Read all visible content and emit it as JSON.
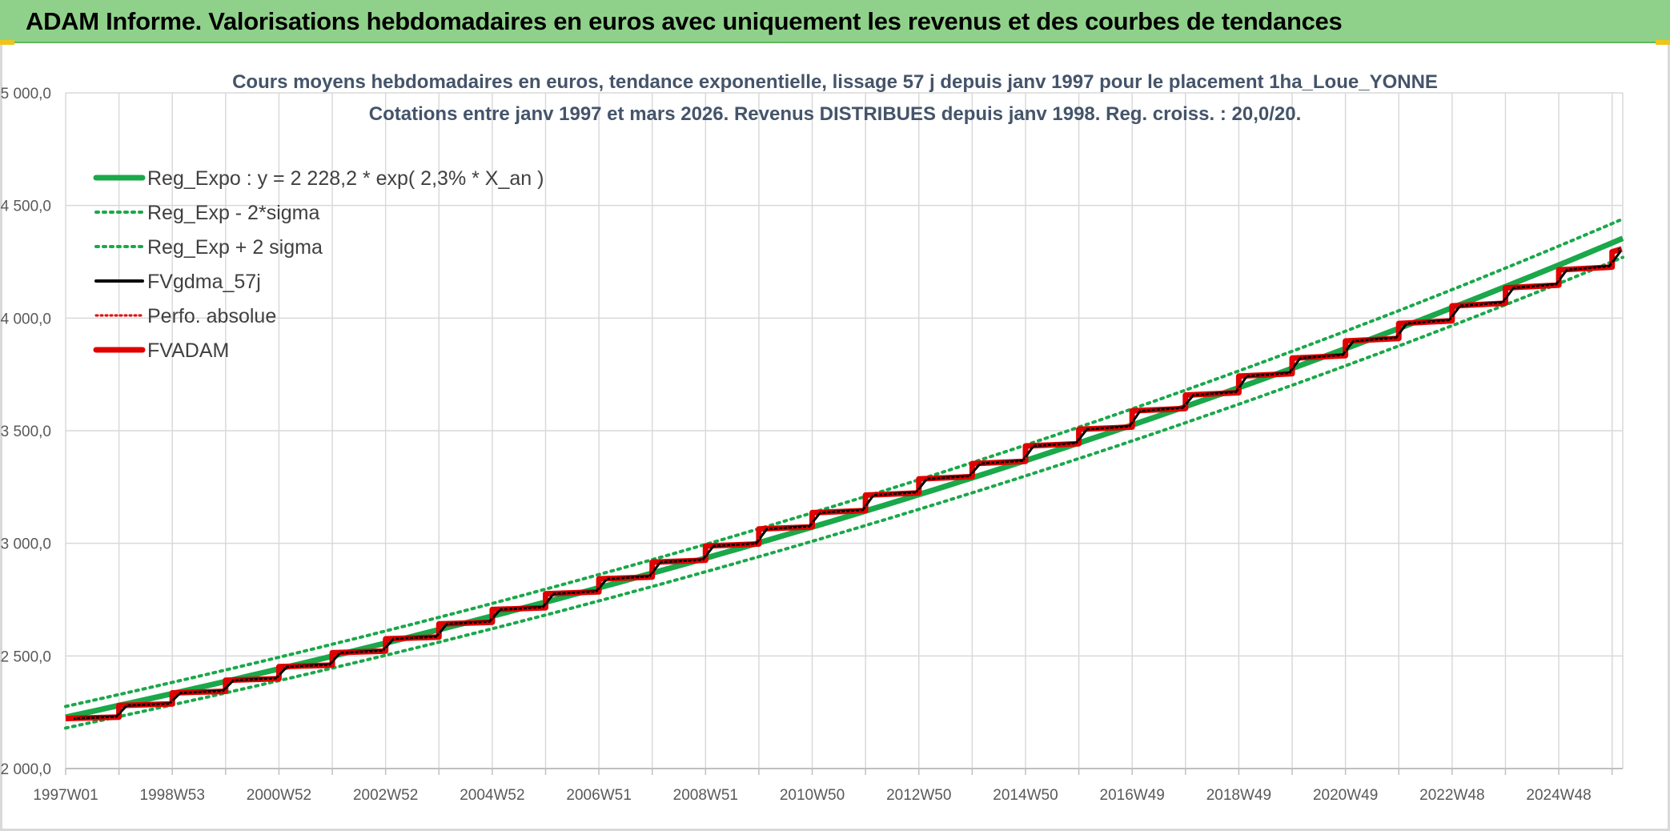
{
  "banner": {
    "title": "ADAM Informe. Valorisations hebdomadaires en euros avec uniquement les revenus et des courbes de tendances"
  },
  "chart_data": {
    "type": "line",
    "title": "Cours moyens hebdomadaires en euros, tendance exponentielle, lissage 57 j depuis janv 1997 pour le placement 1ha_Loue_YONNE",
    "subtitle": "Cotations entre janv 1997 et mars 2026. Revenus DISTRIBUES depuis janv 1998. Reg. croiss. : 20,0/20.",
    "ylim": [
      2000,
      5000
    ],
    "yticks": [
      "2 000,0",
      "2 500,0",
      "3 000,0",
      "3 500,0",
      "4 000,0",
      "4 500,0",
      "5 000,0"
    ],
    "xlim": [
      1997.0,
      2026.2
    ],
    "xtick_labels": [
      "1997W01",
      "1998W53",
      "2000W52",
      "2002W52",
      "2004W52",
      "2006W51",
      "2008W51",
      "2010W50",
      "2012W50",
      "2014W50",
      "2016W49",
      "2018W49",
      "2020W49",
      "2022W48",
      "2024W48"
    ],
    "grid": true,
    "legend_position": "top-left",
    "series": [
      {
        "name": "Reg_Expo : y = 2 228,2 * exp( 2,3% *  X_an )",
        "color": "#1aa84a",
        "style": "solid",
        "x": [
          1997.0,
          2026.2
        ],
        "values": [
          2228.2,
          4354
        ]
      },
      {
        "name": "Reg_Exp - 2*sigma",
        "color": "#1aa84a",
        "style": "dotted",
        "x": [
          1997.0,
          2026.2
        ],
        "values": [
          2180,
          4270
        ]
      },
      {
        "name": "Reg_Exp + 2 sigma",
        "color": "#1aa84a",
        "style": "dotted",
        "x": [
          1997.0,
          2026.2
        ],
        "values": [
          2276,
          4440
        ]
      },
      {
        "name": "FVgdma_57j",
        "color": "#000000",
        "style": "solid",
        "x": [
          1997.0,
          2026.2
        ],
        "values": [
          2225,
          4290
        ]
      },
      {
        "name": "Perfo. absolue",
        "color": "#e00000",
        "style": "dotted",
        "x": [
          1997.0,
          2026.2
        ],
        "values": [
          2225,
          4290
        ]
      },
      {
        "name": "FVADAM",
        "color": "#e00000",
        "style": "solid",
        "x": [
          1997.0,
          1998.0,
          1999.0,
          2000.0,
          2001.0,
          2002.0,
          2003.0,
          2004.0,
          2005.0,
          2006.0,
          2007.0,
          2008.0,
          2009.0,
          2010.0,
          2011.0,
          2012.0,
          2013.0,
          2014.0,
          2015.0,
          2016.0,
          2017.0,
          2018.0,
          2019.0,
          2020.0,
          2021.0,
          2022.0,
          2023.0,
          2024.0,
          2025.0,
          2026.0
        ],
        "values": [
          2222,
          2280,
          2336,
          2392,
          2452,
          2514,
          2576,
          2642,
          2706,
          2776,
          2842,
          2916,
          2988,
          3064,
          3136,
          3214,
          3286,
          3354,
          3432,
          3506,
          3588,
          3658,
          3742,
          3822,
          3898,
          3976,
          4054,
          4134,
          4214,
          4294
        ]
      }
    ]
  }
}
